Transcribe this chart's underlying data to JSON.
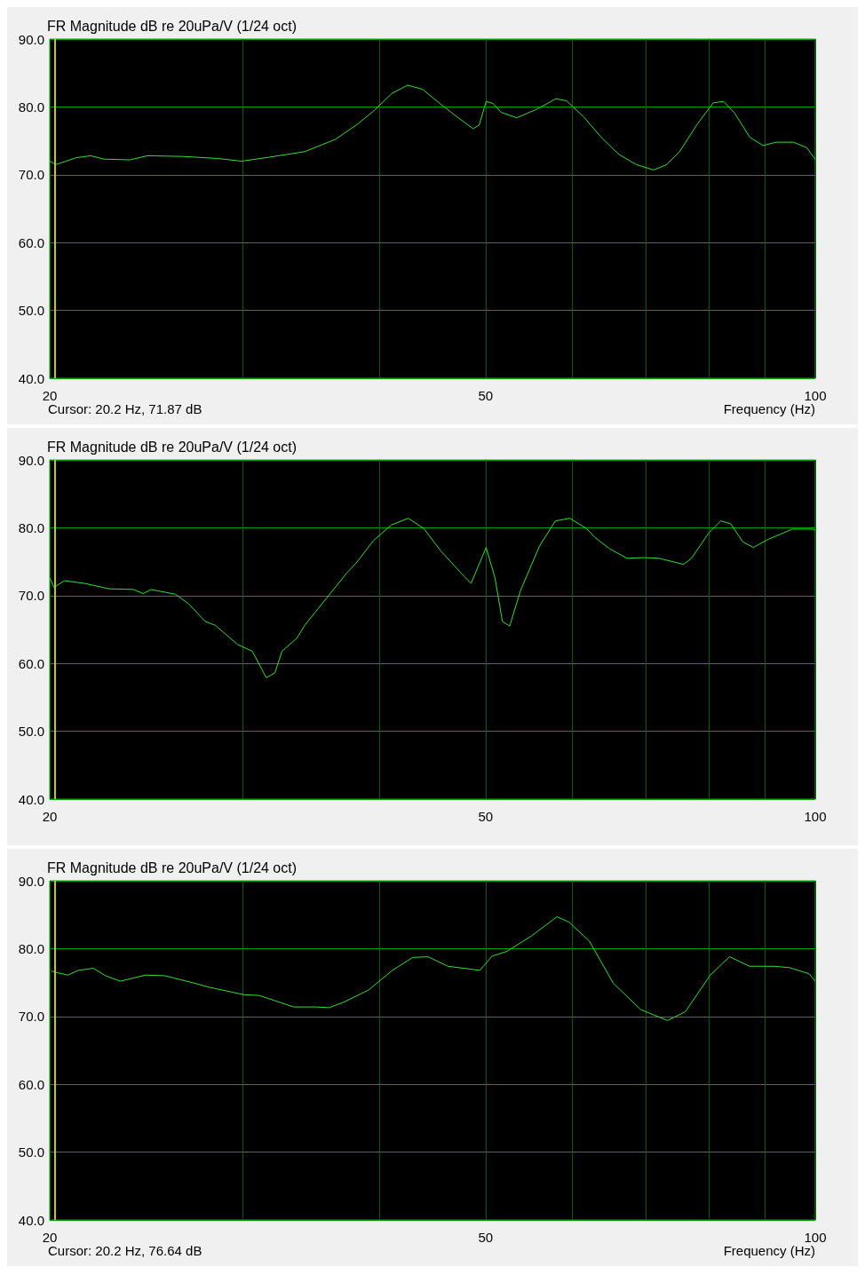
{
  "chart_data": [
    {
      "type": "line",
      "title": "FR Magnitude dB re 20uPa/V (1/24 oct)",
      "xlabel": "Frequency (Hz)",
      "annotations": [
        "Cursor: 20.2 Hz, 71.87 dB"
      ],
      "log": "x",
      "grid": true,
      "marker": "none",
      "xlim": [
        20,
        100
      ],
      "xticks": [
        20,
        {
          "value": 30,
          "label": null
        },
        {
          "value": 40,
          "label": null
        },
        50,
        {
          "value": 60,
          "label": null
        },
        {
          "value": 70,
          "label": null
        },
        {
          "value": 80,
          "label": null
        },
        {
          "value": 90,
          "label": null
        },
        100
      ],
      "ylim": [
        40,
        90
      ],
      "yticks": [
        {
          "value": 40,
          "label": "40.0"
        },
        {
          "value": 50,
          "label": "50.0"
        },
        {
          "value": 60,
          "label": "60.0"
        },
        {
          "value": 70,
          "label": "70.0"
        },
        {
          "value": 80,
          "label": "80.0"
        },
        {
          "value": 90,
          "label": "90.0"
        }
      ],
      "ref_lines": [
        {
          "axis": "x",
          "value": 20.2,
          "color": "#c8c800"
        }
      ],
      "series": [
        {
          "color": "#33e033",
          "x": [
            20.0,
            20.26,
            20.52,
            21.13,
            21.8,
            22.41,
            23.68,
            24.56,
            26.44,
            28.45,
            29.95,
            31.76,
            34.18,
            36.45,
            38.16,
            39.58,
            41.07,
            42.44,
            43.79,
            45.42,
            47.12,
            48.7,
            49.33,
            50.06,
            50.8,
            51.65,
            53.38,
            55.59,
            57.98,
            59.27,
            61.48,
            63.78,
            66.17,
            68.64,
            71.21,
            73.19,
            75.25,
            78.06,
            80.69,
            82.48,
            84.31,
            87.18,
            89.61,
            92.1,
            95.5,
            98.2,
            100
          ],
          "values": [
            72.0,
            71.5,
            71.8,
            72.5,
            72.8,
            72.3,
            72.2,
            72.8,
            72.7,
            72.4,
            72.0,
            72.6,
            73.4,
            75.2,
            77.4,
            79.5,
            82.0,
            83.2,
            82.6,
            80.5,
            78.5,
            76.8,
            77.3,
            80.8,
            80.5,
            79.2,
            78.4,
            79.6,
            81.2,
            80.9,
            78.5,
            75.5,
            73.0,
            71.5,
            70.7,
            71.5,
            73.5,
            77.5,
            80.6,
            80.8,
            79.2,
            75.5,
            74.3,
            74.8,
            74.8,
            74.0,
            72.3
          ]
        }
      ]
    },
    {
      "type": "line",
      "title": "FR Magnitude dB re 20uPa/V (1/24 oct)",
      "log": "x",
      "grid": true,
      "marker": "none",
      "xlim": [
        20,
        100
      ],
      "xticks": [
        20,
        {
          "value": 30,
          "label": null
        },
        {
          "value": 40,
          "label": null
        },
        50,
        {
          "value": 60,
          "label": null
        },
        {
          "value": 70,
          "label": null
        },
        {
          "value": 80,
          "label": null
        },
        {
          "value": 90,
          "label": null
        },
        100
      ],
      "ylim": [
        40,
        90
      ],
      "yticks": [
        {
          "value": 40,
          "label": "40.0"
        },
        {
          "value": 50,
          "label": "50.0"
        },
        {
          "value": 60,
          "label": "60.0"
        },
        {
          "value": 70,
          "label": "70.0"
        },
        {
          "value": 80,
          "label": "80.0"
        },
        {
          "value": 90,
          "label": "90.0"
        }
      ],
      "ref_lines": [
        {
          "axis": "x",
          "value": 20.2,
          "color": "#c8c800"
        }
      ],
      "series": [
        {
          "color": "#33e033",
          "x": [
            20.0,
            20.18,
            20.63,
            21.52,
            22.66,
            23.85,
            24.34,
            24.75,
            26.05,
            26.78,
            27.73,
            28.34,
            29.68,
            30.62,
            31.53,
            32.11,
            32.59,
            33.62,
            34.18,
            35.78,
            37.33,
            38.09,
            39.5,
            41.0,
            42.5,
            43.9,
            45.5,
            47.5,
            48.5,
            50.06,
            51.0,
            51.8,
            52.6,
            53.8,
            56.0,
            57.9,
            59.7,
            61.8,
            62.9,
            64.9,
            67.3,
            69.8,
            72.0,
            75.8,
            77.1,
            79.9,
            82.0,
            83.7,
            85.9,
            87.8,
            90.6,
            95.3,
            99.5,
            100
          ],
          "values": [
            72.6,
            71.2,
            72.2,
            71.8,
            71.0,
            70.9,
            70.3,
            70.9,
            70.2,
            68.8,
            66.2,
            65.6,
            62.8,
            61.8,
            57.9,
            58.6,
            61.8,
            63.7,
            65.6,
            69.6,
            73.3,
            74.8,
            78.1,
            80.4,
            81.4,
            79.9,
            76.6,
            73.3,
            71.8,
            77.1,
            72.6,
            66.2,
            65.5,
            70.7,
            77.3,
            81.0,
            81.4,
            79.9,
            78.6,
            76.9,
            75.5,
            75.6,
            75.5,
            74.6,
            75.5,
            79.2,
            81.0,
            80.6,
            77.9,
            77.1,
            78.3,
            79.8,
            79.8,
            79.6
          ]
        }
      ]
    },
    {
      "type": "line",
      "title": "FR Magnitude dB re 20uPa/V (1/24 oct)",
      "xlabel": "Frequency (Hz)",
      "annotations": [
        "Cursor: 20.2 Hz, 76.64 dB"
      ],
      "log": "x",
      "grid": true,
      "marker": "none",
      "xlim": [
        20,
        100
      ],
      "xticks": [
        20,
        {
          "value": 30,
          "label": null
        },
        {
          "value": 40,
          "label": null
        },
        50,
        {
          "value": 60,
          "label": null
        },
        {
          "value": 70,
          "label": null
        },
        {
          "value": 80,
          "label": null
        },
        {
          "value": 90,
          "label": null
        },
        100
      ],
      "ylim": [
        40,
        90
      ],
      "yticks": [
        {
          "value": 40,
          "label": "40.0"
        },
        {
          "value": 50,
          "label": "50.0"
        },
        {
          "value": 60,
          "label": "60.0"
        },
        {
          "value": 70,
          "label": "70.0"
        },
        {
          "value": 80,
          "label": "80.0"
        },
        {
          "value": 90,
          "label": "90.0"
        }
      ],
      "ref_lines": [
        {
          "axis": "x",
          "value": 20.2,
          "color": "#c8c800"
        }
      ],
      "series": [
        {
          "color": "#33e033",
          "x": [
            20.07,
            20.26,
            20.78,
            21.24,
            21.92,
            22.49,
            23.2,
            24.47,
            25.48,
            27.12,
            27.98,
            30.1,
            31.07,
            33.4,
            35.0,
            36.0,
            37.1,
            39.1,
            41.1,
            42.9,
            44.3,
            46.2,
            49.4,
            50.7,
            52.3,
            55.1,
            58.1,
            59.6,
            62.2,
            65.4,
            69.3,
            73.3,
            76.1,
            80.2,
            83.5,
            87.1,
            91.7,
            94.7,
            98.7,
            100
          ],
          "values": [
            76.7,
            76.5,
            76.1,
            76.8,
            77.1,
            76.0,
            75.2,
            76.1,
            76.0,
            74.9,
            74.3,
            73.2,
            73.1,
            71.4,
            71.4,
            71.3,
            72.1,
            73.9,
            76.8,
            78.7,
            78.8,
            77.4,
            76.8,
            78.9,
            79.6,
            81.9,
            84.7,
            83.9,
            81.1,
            74.9,
            71.0,
            69.4,
            70.7,
            76.1,
            78.8,
            77.4,
            77.4,
            77.2,
            76.3,
            75.2
          ]
        }
      ]
    }
  ]
}
